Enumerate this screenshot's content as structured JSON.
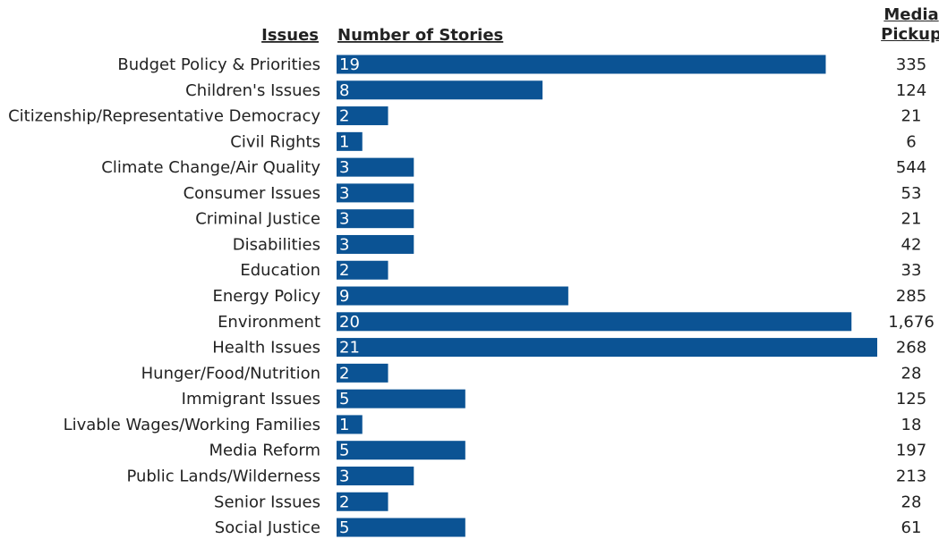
{
  "chart_data": {
    "type": "bar",
    "orientation": "horizontal",
    "category_header": "Issues",
    "value_header": "Number of Stories",
    "categories": [
      "Budget Policy & Priorities",
      "Children's Issues",
      "Citizenship/Representative Democracy",
      "Civil Rights",
      "Climate Change/Air Quality",
      "Consumer Issues",
      "Criminal Justice",
      "Disabilities",
      "Education",
      "Energy Policy",
      "Environment",
      "Health Issues",
      "Hunger/Food/Nutrition",
      "Immigrant Issues",
      "Livable Wages/Working Families",
      "Media Reform",
      "Public Lands/Wilderness",
      "Senior Issues",
      "Social Justice"
    ],
    "values": [
      19,
      8,
      2,
      1,
      3,
      3,
      3,
      3,
      2,
      9,
      20,
      21,
      2,
      5,
      1,
      5,
      3,
      2,
      5
    ],
    "color": "#0b5394",
    "xlim": [
      0,
      21
    ],
    "media_pickup": {
      "title": "Media Pickup",
      "values": [
        335,
        124,
        21,
        6,
        544,
        53,
        21,
        42,
        33,
        285,
        1676,
        268,
        28,
        125,
        18,
        197,
        213,
        28,
        61
      ],
      "value_labels": [
        "335",
        "124",
        "21",
        "6",
        "544",
        "53",
        "21",
        "42",
        "33",
        "285",
        "1,676",
        "268",
        "28",
        "125",
        "18",
        "197",
        "213",
        "28",
        "61"
      ]
    }
  }
}
